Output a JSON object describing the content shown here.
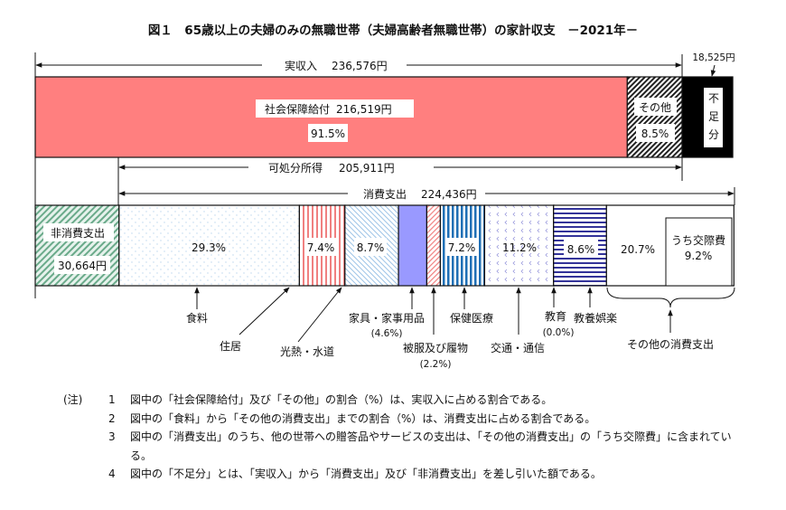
{
  "title": "図１　65歳以上の夫婦のみの無職世帯（夫婦高齢者無職世帯）の家計収支　－2021年－",
  "income": {
    "label": "実収入",
    "amount": "236,576円",
    "value": 236576
  },
  "social_security": {
    "label": "社会保障給付",
    "amount": "216,519円",
    "value": 216519,
    "pct": "91.5%"
  },
  "other_income": {
    "label": "その他",
    "pct": "8.5%"
  },
  "shortfall": {
    "label_chars": [
      "不",
      "足",
      "分"
    ],
    "amount": "18,525円",
    "value": 18525
  },
  "disposable": {
    "label": "可処分所得",
    "amount": "205,911円"
  },
  "consumption": {
    "label": "消費支出",
    "amount": "224,436円"
  },
  "non_consumption": {
    "label": "非消費支出",
    "amount": "30,664円",
    "value": 30664
  },
  "categories": [
    {
      "key": "food",
      "label": "食料",
      "pct": 29.3,
      "pct_label": "29.3%",
      "color": "#bcd6ee"
    },
    {
      "key": "housing",
      "label": "住居",
      "pct": 7.4,
      "pct_label": "7.4%",
      "color": "#f08080"
    },
    {
      "key": "utilities",
      "label": "光熱・水道",
      "pct": 8.7,
      "pct_label": "8.7%",
      "color": "#9cc3e6"
    },
    {
      "key": "furniture",
      "label": "家具・家事用品",
      "pct": 4.6,
      "pct_label": "(4.6%)",
      "color": "#9999ff"
    },
    {
      "key": "clothing",
      "label": "被服及び履物",
      "pct": 2.2,
      "pct_label": "(2.2%)",
      "color": "#f08080"
    },
    {
      "key": "medical",
      "label": "保健医療",
      "pct": 7.2,
      "pct_label": "7.2%",
      "color": "#1f6fb5"
    },
    {
      "key": "transport",
      "label": "交通・通信",
      "pct": 11.2,
      "pct_label": "11.2%",
      "color": "#9999dd"
    },
    {
      "key": "education",
      "label": "教育",
      "pct": 0.0,
      "pct_label": "(0.0%)",
      "color": "#333399"
    },
    {
      "key": "culture",
      "label": "教養娯楽",
      "pct": 8.6,
      "pct_label": "8.6%",
      "color": "#333399"
    },
    {
      "key": "other",
      "label": "その他の消費支出",
      "pct": 20.7,
      "pct_label": "20.7%",
      "color": "#ffffff"
    }
  ],
  "social_expense": {
    "label": "うち交際費",
    "pct": "9.2%"
  },
  "colors": {
    "social_security": "#ff7f7f",
    "shortfall": "#000000"
  },
  "notes": {
    "prefix": "(注)",
    "items": [
      {
        "num": "1",
        "text": "図中の「社会保障給付」及び「その他」の割合（%）は、実収入に占める割合である。"
      },
      {
        "num": "2",
        "text": "図中の「食料」から「その他の消費支出」までの割合（%）は、消費支出に占める割合である。"
      },
      {
        "num": "3",
        "text": "図中の「消費支出」のうち、他の世帯への贈答品やサービスの支出は、「その他の消費支出」の「うち交際費」に含まれている。"
      },
      {
        "num": "4",
        "text": "図中の「不足分」とは、「実収入」から「消費支出」及び「非消費支出」を差し引いた額である。"
      }
    ]
  }
}
